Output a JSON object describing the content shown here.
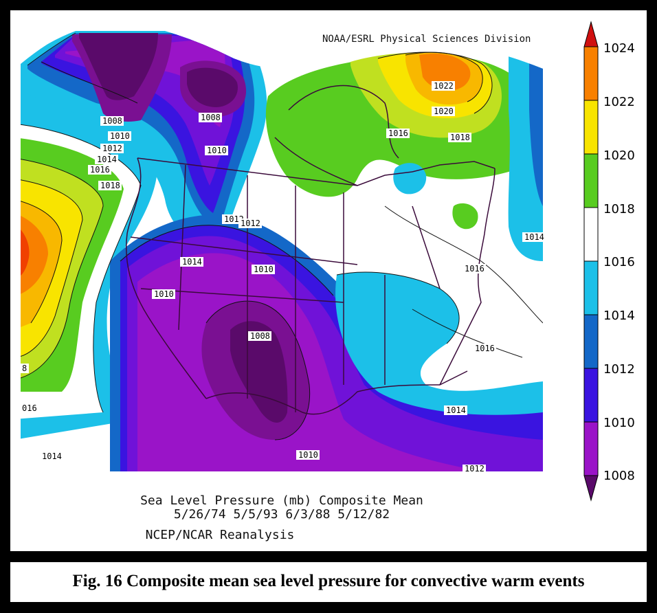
{
  "credit": "NOAA/ESRL Physical Sciences Division",
  "caption": {
    "line1": "Sea Level Pressure (mb) Composite Mean",
    "line2": "5/26/74 5/5/93 6/3/88 5/12/82",
    "line3": "NCEP/NCAR Reanalysis"
  },
  "figure_caption": "Fig. 16 Composite mean sea level pressure for convective warm events",
  "colorbar": {
    "levels": [
      "1024",
      "1022",
      "1020",
      "1018",
      "1016",
      "1014",
      "1012",
      "1010",
      "1008"
    ],
    "colors": {
      "1008": "#5a0a6a",
      "1009": "#7a1092",
      "1010": "#9a14c8",
      "1011": "#7012d8",
      "1012": "#3a14e0",
      "1013": "#1468c8",
      "1014": "#1cc0e8",
      "1016": "#ffffff",
      "1018": "#58cc20",
      "1019": "#c0e020",
      "1020": "#f8e400",
      "1021": "#f8b800",
      "1022": "#f88000",
      "1023": "#f04000",
      "1024": "#d01010"
    }
  },
  "contour_labels": [
    {
      "text": "1008"
    },
    {
      "text": "1010"
    },
    {
      "text": "1012"
    },
    {
      "text": "1014"
    },
    {
      "text": "1016"
    },
    {
      "text": "1018"
    },
    {
      "text": "1008"
    },
    {
      "text": "1010"
    },
    {
      "text": "1012"
    },
    {
      "text": "1012"
    },
    {
      "text": "1014"
    },
    {
      "text": "1010"
    },
    {
      "text": "1010"
    },
    {
      "text": "1008"
    },
    {
      "text": "1016"
    },
    {
      "text": "1018"
    },
    {
      "text": "1020"
    },
    {
      "text": "1022"
    },
    {
      "text": "1014"
    },
    {
      "text": "1016"
    },
    {
      "text": "1016"
    },
    {
      "text": "1014"
    },
    {
      "text": "1010"
    },
    {
      "text": "1014"
    },
    {
      "text": "1012"
    },
    {
      "text": "8"
    },
    {
      "text": "016"
    }
  ]
}
